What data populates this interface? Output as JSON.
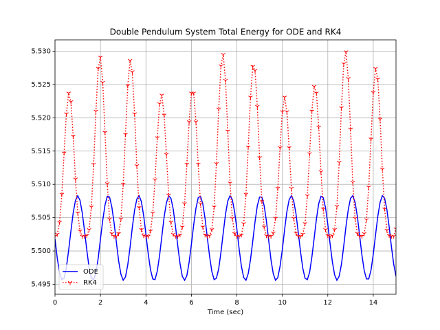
{
  "chart_data": {
    "type": "line",
    "title": "Double Pendulum System Total Energy for ODE and RK4",
    "x_label": "Time (sec)",
    "x": [
      0,
      0.1,
      0.2,
      0.3,
      0.4,
      0.5,
      0.6,
      0.7,
      0.8,
      0.9,
      1,
      1.1,
      1.2,
      1.3,
      1.4,
      1.5,
      1.6,
      1.7,
      1.8,
      1.9,
      2,
      2.1,
      2.2,
      2.3,
      2.4,
      2.5,
      2.6,
      2.7,
      2.8,
      2.9,
      3,
      3.1,
      3.2,
      3.3,
      3.4,
      3.5,
      3.6,
      3.7,
      3.8,
      3.9,
      4,
      4.1,
      4.2,
      4.3,
      4.4,
      4.5,
      4.6,
      4.7,
      4.8,
      4.9,
      5,
      5.1,
      5.2,
      5.3,
      5.4,
      5.5,
      5.6,
      5.7,
      5.8,
      5.9,
      6,
      6.1,
      6.2,
      6.3,
      6.4,
      6.5,
      6.6,
      6.7,
      6.8,
      6.9,
      7,
      7.1,
      7.2,
      7.3,
      7.4,
      7.5,
      7.6,
      7.7,
      7.8,
      7.9,
      8,
      8.1,
      8.2,
      8.3,
      8.4,
      8.5,
      8.6,
      8.7,
      8.8,
      8.9,
      9,
      9.1,
      9.2,
      9.3,
      9.4,
      9.5,
      9.6,
      9.7,
      9.8,
      9.9,
      10,
      10.1,
      10.2,
      10.3,
      10.4,
      10.5,
      10.6,
      10.7,
      10.8,
      10.9,
      11,
      11.1,
      11.2,
      11.3,
      11.4,
      11.5,
      11.6,
      11.7,
      11.8,
      11.9,
      12,
      12.1,
      12.2,
      12.3,
      12.4,
      12.5,
      12.6,
      12.7,
      12.8,
      12.9,
      13,
      13.1,
      13.2,
      13.3,
      13.4,
      13.5,
      13.6,
      13.7,
      13.8,
      13.9,
      14,
      14.1,
      14.2,
      14.3,
      14.4,
      14.5,
      14.6,
      14.7,
      14.8,
      14.9,
      15
    ],
    "series": [
      {
        "name": "ODE",
        "color": "#0000ff",
        "linestyle": "solid",
        "marker": "none",
        "values": [
          5.5018,
          5.4989,
          5.4967,
          5.4957,
          5.4959,
          5.4975,
          5.5001,
          5.503,
          5.5057,
          5.5076,
          5.5083,
          5.5076,
          5.5057,
          5.503,
          5.5001,
          5.4975,
          5.4959,
          5.4957,
          5.4967,
          5.4989,
          5.5018,
          5.5046,
          5.5069,
          5.5082,
          5.5081,
          5.5066,
          5.5042,
          5.5013,
          5.4985,
          5.4965,
          5.4956,
          5.4961,
          5.4979,
          5.5005,
          5.5035,
          5.5061,
          5.5078,
          5.5083,
          5.5074,
          5.5053,
          5.5025,
          5.4996,
          5.4972,
          5.4958,
          5.4957,
          5.497,
          5.4993,
          5.5022,
          5.5051,
          5.5072,
          5.5083,
          5.5079,
          5.5063,
          5.5037,
          5.5008,
          5.4981,
          5.4962,
          5.4956,
          5.4963,
          5.4983,
          5.501,
          5.5039,
          5.5064,
          5.508,
          5.5082,
          5.5071,
          5.5049,
          5.502,
          5.4992,
          5.4969,
          5.4957,
          5.4959,
          5.4973,
          5.4998,
          5.5027,
          5.5055,
          5.5075,
          5.5083,
          5.5077,
          5.5059,
          5.5033,
          5.5003,
          5.4977,
          5.496,
          5.4956,
          5.4966,
          5.4987,
          5.5015,
          5.5044,
          5.5068,
          5.5081,
          5.5081,
          5.5068,
          5.5045,
          5.5016,
          5.4987,
          5.4966,
          5.4956,
          5.496,
          5.4977,
          5.5002,
          5.5032,
          5.5059,
          5.5077,
          5.5083,
          5.5075,
          5.5056,
          5.5028,
          5.4999,
          5.4974,
          5.4959,
          5.4957,
          5.4968,
          5.4991,
          5.5019,
          5.5048,
          5.5071,
          5.5082,
          5.508,
          5.5065,
          5.504,
          5.5011,
          5.4984,
          5.4964,
          5.4956,
          5.4962,
          5.498,
          5.5007,
          5.5037,
          5.5062,
          5.5079,
          5.5083,
          5.5073,
          5.5052,
          5.5023,
          5.4994,
          5.4971,
          5.4958,
          5.4958,
          5.4971,
          5.4995,
          5.5024,
          5.5052,
          5.5073,
          5.5083,
          5.5079,
          5.5062,
          5.5036,
          5.5006,
          5.498,
          5.4962
        ]
      },
      {
        "name": "RK4",
        "color": "#ff0000",
        "linestyle": "dotted",
        "marker": "star",
        "values": [
          5.5022,
          5.5025,
          5.5043,
          5.5085,
          5.5147,
          5.5206,
          5.5237,
          5.5224,
          5.5172,
          5.5108,
          5.5057,
          5.503,
          5.5022,
          5.5022,
          5.5023,
          5.5032,
          5.5066,
          5.513,
          5.521,
          5.5274,
          5.5291,
          5.5253,
          5.5178,
          5.5101,
          5.5048,
          5.5026,
          5.5022,
          5.5022,
          5.5026,
          5.5048,
          5.51,
          5.5175,
          5.5248,
          5.5286,
          5.5269,
          5.5206,
          5.5128,
          5.5065,
          5.5032,
          5.5023,
          5.5022,
          5.5022,
          5.503,
          5.5057,
          5.5107,
          5.517,
          5.5221,
          5.5234,
          5.5204,
          5.5145,
          5.5084,
          5.5043,
          5.5025,
          5.5022,
          5.5022,
          5.5024,
          5.5036,
          5.5071,
          5.513,
          5.5194,
          5.5237,
          5.5237,
          5.5194,
          5.513,
          5.5071,
          5.5036,
          5.5024,
          5.5022,
          5.5023,
          5.5032,
          5.5066,
          5.5131,
          5.5213,
          5.5278,
          5.5295,
          5.5256,
          5.518,
          5.5102,
          5.5049,
          5.5026,
          5.5022,
          5.5022,
          5.5024,
          5.5041,
          5.5085,
          5.5156,
          5.5231,
          5.5277,
          5.5271,
          5.5217,
          5.514,
          5.5074,
          5.5036,
          5.5023,
          5.5022,
          5.5022,
          5.5027,
          5.5049,
          5.5094,
          5.5155,
          5.5209,
          5.5231,
          5.5209,
          5.5155,
          5.5094,
          5.5049,
          5.5027,
          5.5022,
          5.5022,
          5.5025,
          5.5041,
          5.5083,
          5.5146,
          5.521,
          5.5247,
          5.5237,
          5.5186,
          5.5119,
          5.5063,
          5.5032,
          5.5023,
          5.5022,
          5.5023,
          5.5032,
          5.5067,
          5.5133,
          5.5215,
          5.5281,
          5.5299,
          5.5259,
          5.5183,
          5.5103,
          5.5049,
          5.5026,
          5.5022,
          5.5022,
          5.5026,
          5.5047,
          5.5096,
          5.5168,
          5.5238,
          5.5274,
          5.5258,
          5.5198,
          5.5123,
          5.5063,
          5.5031,
          5.5023,
          5.5022,
          5.5022,
          5.5033
        ]
      }
    ],
    "xlim": [
      0,
      15
    ],
    "xticks": [
      0,
      2,
      4,
      6,
      8,
      10,
      12,
      14
    ],
    "ylim": [
      5.4935,
      5.5317
    ],
    "yticks": [
      5.495,
      {
        "value": 5.5,
        "label": "5.500"
      },
      5.505,
      {
        "value": 5.51,
        "label": "5.510"
      },
      5.515,
      {
        "value": 5.52,
        "label": "5.520"
      },
      5.525,
      {
        "value": 5.53,
        "label": "5.530"
      }
    ],
    "grid": true,
    "legend_loc": "lower left"
  }
}
